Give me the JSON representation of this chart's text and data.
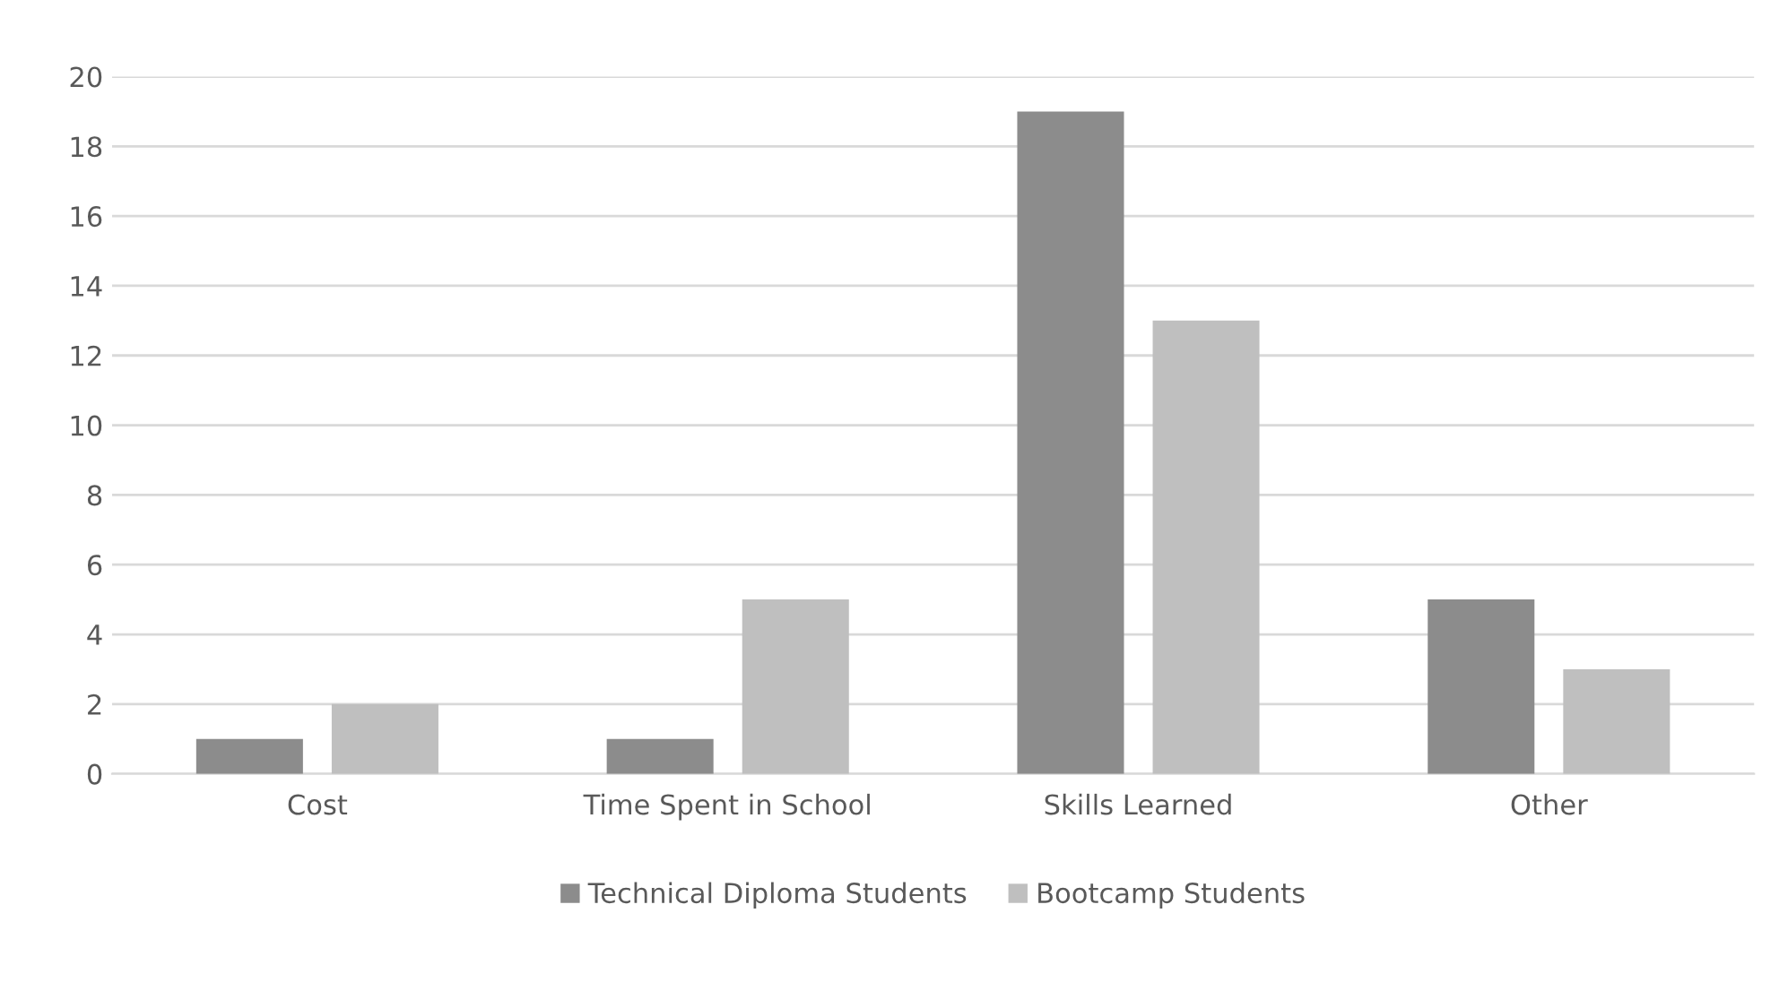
{
  "chart_data": {
    "type": "bar",
    "categories": [
      "Cost",
      "Time Spent in School",
      "Skills Learned",
      "Other"
    ],
    "series": [
      {
        "name": "Technical Diploma Students",
        "color": "#8c8c8c",
        "values": [
          1,
          1,
          19,
          5
        ]
      },
      {
        "name": "Bootcamp Students",
        "color": "#bfbfbf",
        "values": [
          2,
          5,
          13,
          3
        ]
      }
    ],
    "ylim": [
      0,
      20
    ],
    "yticks": [
      0,
      2,
      4,
      6,
      8,
      10,
      12,
      14,
      16,
      18,
      20
    ],
    "grid": "y",
    "legend": "bottom"
  }
}
